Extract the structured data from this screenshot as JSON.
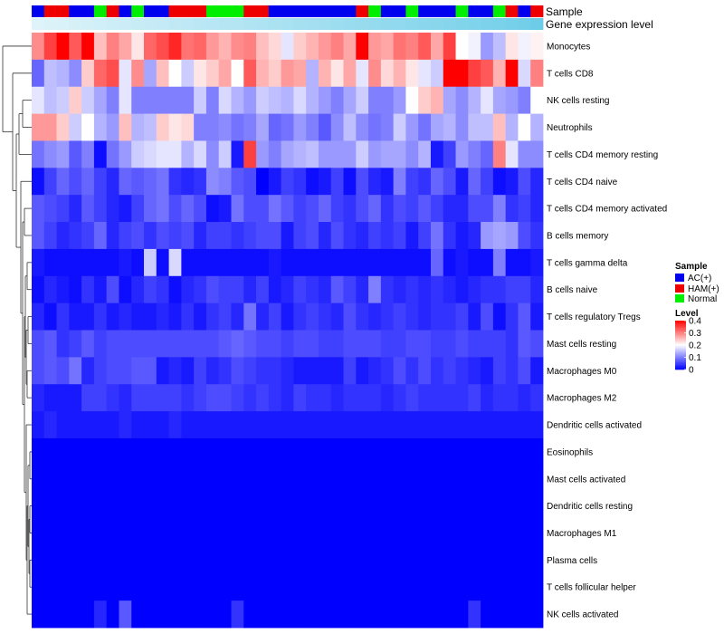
{
  "chart_data": {
    "type": "heatmap",
    "title": "",
    "annotation_labels": [
      "Sample",
      "Gene expression level"
    ],
    "colors": {
      "AC(+)": "#0000ee",
      "HAM(+)": "#ee0000",
      "Normal": "#00ee00",
      "gene_level_low": "#e6f6fb",
      "gene_level_high": "#5fc8e6",
      "level_low": "#0000ff",
      "level_mid": "#ffffff",
      "level_high": "#ff0000"
    },
    "sample_groups": [
      "AC(+)",
      "HAM(+)",
      "HAM(+)",
      "AC(+)",
      "AC(+)",
      "Normal",
      "HAM(+)",
      "AC(+)",
      "Normal",
      "AC(+)",
      "AC(+)",
      "HAM(+)",
      "HAM(+)",
      "HAM(+)",
      "Normal",
      "Normal",
      "Normal",
      "HAM(+)",
      "HAM(+)",
      "AC(+)",
      "AC(+)",
      "AC(+)",
      "AC(+)",
      "AC(+)",
      "AC(+)",
      "AC(+)",
      "HAM(+)",
      "Normal",
      "AC(+)",
      "AC(+)",
      "Normal",
      "AC(+)",
      "AC(+)",
      "AC(+)",
      "Normal",
      "AC(+)",
      "AC(+)",
      "Normal",
      "HAM(+)",
      "AC(+)",
      "HAM(+)"
    ],
    "gene_expression": [
      0.05,
      0.08,
      0.1,
      0.12,
      0.14,
      0.16,
      0.18,
      0.2,
      0.22,
      0.24,
      0.26,
      0.28,
      0.3,
      0.32,
      0.34,
      0.36,
      0.38,
      0.4,
      0.42,
      0.44,
      0.46,
      0.48,
      0.5,
      0.52,
      0.54,
      0.56,
      0.58,
      0.6,
      0.62,
      0.64,
      0.66,
      0.68,
      0.7,
      0.72,
      0.74,
      0.76,
      0.78,
      0.8,
      0.82,
      0.85,
      0.9
    ],
    "rows": [
      "Monocytes",
      "T cells CD8",
      "NK cells resting",
      "Neutrophils",
      "T cells CD4 memory resting",
      "T cells CD4 naive",
      "T cells CD4 memory activated",
      "B cells memory",
      "T cells gamma delta",
      "B cells naive",
      "T cells regulatory  Tregs",
      "Mast cells resting",
      "Macrophages M0",
      "Macrophages M2",
      "Dendritic cells activated",
      "Eosinophils",
      "Mast cells activated",
      "Dendritic cells resting",
      "Macrophages M1",
      "Plasma cells",
      "T cells follicular helper",
      "NK cells activated"
    ],
    "values": [
      [
        0.29,
        0.35,
        0.4,
        0.33,
        0.4,
        0.25,
        0.3,
        0.27,
        0.22,
        0.32,
        0.34,
        0.37,
        0.31,
        0.32,
        0.28,
        0.26,
        0.29,
        0.3,
        0.25,
        0.23,
        0.18,
        0.24,
        0.26,
        0.28,
        0.3,
        0.27,
        0.4,
        0.28,
        0.27,
        0.31,
        0.3,
        0.33,
        0.27,
        0.35,
        0.2,
        0.19,
        0.12,
        0.15,
        0.22,
        0.19,
        0.21
      ],
      [
        0.08,
        0.15,
        0.14,
        0.11,
        0.24,
        0.32,
        0.34,
        0.18,
        0.29,
        0.13,
        0.25,
        0.2,
        0.16,
        0.22,
        0.24,
        0.27,
        0.2,
        0.33,
        0.26,
        0.24,
        0.28,
        0.27,
        0.14,
        0.26,
        0.22,
        0.27,
        0.18,
        0.29,
        0.23,
        0.26,
        0.22,
        0.18,
        0.16,
        0.4,
        0.4,
        0.35,
        0.33,
        0.26,
        0.4,
        0.17,
        0.3
      ],
      [
        0.18,
        0.15,
        0.16,
        0.24,
        0.16,
        0.13,
        0.1,
        0.18,
        0.1,
        0.1,
        0.1,
        0.1,
        0.1,
        0.16,
        0.1,
        0.17,
        0.14,
        0.12,
        0.16,
        0.15,
        0.14,
        0.17,
        0.14,
        0.12,
        0.1,
        0.13,
        0.16,
        0.1,
        0.1,
        0.12,
        0.2,
        0.24,
        0.26,
        0.13,
        0.11,
        0.14,
        0.18,
        0.13,
        0.12,
        0.1,
        0.2
      ],
      [
        0.28,
        0.28,
        0.24,
        0.16,
        0.2,
        0.14,
        0.12,
        0.25,
        0.14,
        0.15,
        0.24,
        0.22,
        0.23,
        0.1,
        0.1,
        0.11,
        0.09,
        0.1,
        0.13,
        0.08,
        0.09,
        0.12,
        0.1,
        0.07,
        0.11,
        0.15,
        0.11,
        0.09,
        0.1,
        0.16,
        0.12,
        0.09,
        0.13,
        0.14,
        0.11,
        0.15,
        0.15,
        0.25,
        0.14,
        0.2,
        0.14
      ],
      [
        0.09,
        0.11,
        0.12,
        0.07,
        0.1,
        0.01,
        0.09,
        0.12,
        0.16,
        0.17,
        0.18,
        0.18,
        0.14,
        0.17,
        0.11,
        0.16,
        0.02,
        0.35,
        0.12,
        0.1,
        0.13,
        0.14,
        0.15,
        0.12,
        0.12,
        0.12,
        0.16,
        0.12,
        0.13,
        0.13,
        0.11,
        0.14,
        0.02,
        0.05,
        0.12,
        0.1,
        0.08,
        0.3,
        0.18,
        0.11,
        0.11
      ],
      [
        0.01,
        0.05,
        0.08,
        0.06,
        0.08,
        0.05,
        0.03,
        0.08,
        0.07,
        0.08,
        0.09,
        0.04,
        0.03,
        0.04,
        0.11,
        0.1,
        0.07,
        0.06,
        0.0,
        0.02,
        0.05,
        0.04,
        0.01,
        0.02,
        0.05,
        0.01,
        0.06,
        0.03,
        0.02,
        0.1,
        0.05,
        0.04,
        0.08,
        0.06,
        0.02,
        0.08,
        0.05,
        0.01,
        0.02,
        0.06,
        0.03
      ],
      [
        0.07,
        0.06,
        0.05,
        0.03,
        0.07,
        0.05,
        0.03,
        0.02,
        0.05,
        0.08,
        0.09,
        0.06,
        0.08,
        0.06,
        0.01,
        0.02,
        0.09,
        0.06,
        0.06,
        0.09,
        0.07,
        0.05,
        0.06,
        0.08,
        0.05,
        0.04,
        0.06,
        0.08,
        0.04,
        0.06,
        0.05,
        0.07,
        0.05,
        0.03,
        0.03,
        0.06,
        0.06,
        0.1,
        0.04,
        0.05,
        0.03
      ],
      [
        0.07,
        0.05,
        0.03,
        0.04,
        0.05,
        0.08,
        0.03,
        0.05,
        0.06,
        0.04,
        0.06,
        0.05,
        0.06,
        0.03,
        0.05,
        0.05,
        0.04,
        0.05,
        0.06,
        0.06,
        0.02,
        0.05,
        0.06,
        0.03,
        0.06,
        0.04,
        0.03,
        0.05,
        0.04,
        0.05,
        0.02,
        0.05,
        0.09,
        0.04,
        0.02,
        0.03,
        0.12,
        0.13,
        0.12,
        0.06,
        0.04
      ],
      [
        0.02,
        0.01,
        0.01,
        0.01,
        0.01,
        0.01,
        0.01,
        0.02,
        0.01,
        0.16,
        0.01,
        0.17,
        0.01,
        0.01,
        0.01,
        0.01,
        0.01,
        0.01,
        0.01,
        0.02,
        0.01,
        0.01,
        0.01,
        0.01,
        0.01,
        0.01,
        0.01,
        0.01,
        0.01,
        0.01,
        0.01,
        0.01,
        0.08,
        0.01,
        0.02,
        0.01,
        0.01,
        0.1,
        0.01,
        0.01,
        0.02
      ],
      [
        0.01,
        0.03,
        0.02,
        0.01,
        0.04,
        0.02,
        0.06,
        0.01,
        0.03,
        0.05,
        0.04,
        0.01,
        0.03,
        0.04,
        0.06,
        0.05,
        0.05,
        0.03,
        0.05,
        0.02,
        0.03,
        0.05,
        0.04,
        0.03,
        0.07,
        0.05,
        0.03,
        0.1,
        0.04,
        0.03,
        0.04,
        0.03,
        0.04,
        0.03,
        0.02,
        0.03,
        0.04,
        0.04,
        0.05,
        0.05,
        0.03
      ],
      [
        0.03,
        0.01,
        0.04,
        0.02,
        0.02,
        0.04,
        0.02,
        0.03,
        0.02,
        0.02,
        0.03,
        0.02,
        0.04,
        0.02,
        0.04,
        0.05,
        0.03,
        0.09,
        0.03,
        0.05,
        0.02,
        0.04,
        0.05,
        0.04,
        0.03,
        0.06,
        0.04,
        0.03,
        0.04,
        0.05,
        0.04,
        0.03,
        0.04,
        0.04,
        0.05,
        0.02,
        0.06,
        0.01,
        0.04,
        0.07,
        0.02
      ],
      [
        0.06,
        0.07,
        0.04,
        0.05,
        0.07,
        0.05,
        0.06,
        0.06,
        0.06,
        0.06,
        0.06,
        0.06,
        0.06,
        0.06,
        0.06,
        0.07,
        0.08,
        0.07,
        0.06,
        0.06,
        0.05,
        0.06,
        0.06,
        0.05,
        0.05,
        0.06,
        0.06,
        0.06,
        0.05,
        0.05,
        0.06,
        0.06,
        0.05,
        0.05,
        0.06,
        0.05,
        0.05,
        0.05,
        0.04,
        0.07,
        0.06
      ],
      [
        0.06,
        0.07,
        0.06,
        0.09,
        0.03,
        0.05,
        0.06,
        0.06,
        0.07,
        0.07,
        0.02,
        0.03,
        0.02,
        0.05,
        0.03,
        0.04,
        0.06,
        0.05,
        0.04,
        0.04,
        0.03,
        0.02,
        0.02,
        0.02,
        0.02,
        0.05,
        0.02,
        0.03,
        0.04,
        0.06,
        0.04,
        0.06,
        0.04,
        0.05,
        0.04,
        0.03,
        0.02,
        0.05,
        0.04,
        0.06,
        0.02
      ],
      [
        0.03,
        0.02,
        0.02,
        0.02,
        0.05,
        0.05,
        0.04,
        0.03,
        0.05,
        0.05,
        0.05,
        0.05,
        0.04,
        0.05,
        0.06,
        0.06,
        0.05,
        0.04,
        0.05,
        0.04,
        0.03,
        0.05,
        0.04,
        0.04,
        0.03,
        0.04,
        0.04,
        0.04,
        0.03,
        0.04,
        0.05,
        0.04,
        0.04,
        0.04,
        0.04,
        0.05,
        0.03,
        0.04,
        0.04,
        0.03,
        0.04
      ],
      [
        0.02,
        0.03,
        0.02,
        0.02,
        0.02,
        0.02,
        0.02,
        0.03,
        0.02,
        0.02,
        0.02,
        0.03,
        0.02,
        0.02,
        0.02,
        0.02,
        0.02,
        0.02,
        0.02,
        0.02,
        0.02,
        0.02,
        0.02,
        0.02,
        0.02,
        0.02,
        0.02,
        0.02,
        0.02,
        0.02,
        0.02,
        0.02,
        0.02,
        0.02,
        0.02,
        0.02,
        0.02,
        0.02,
        0.02,
        0.02,
        0.02
      ],
      [
        0.0,
        0.0,
        0.0,
        0.0,
        0.0,
        0.0,
        0.0,
        0.0,
        0.0,
        0.0,
        0.0,
        0.0,
        0.0,
        0.0,
        0.0,
        0.0,
        0.0,
        0.0,
        0.0,
        0.0,
        0.0,
        0.0,
        0.0,
        0.0,
        0.0,
        0.0,
        0.0,
        0.0,
        0.0,
        0.0,
        0.0,
        0.0,
        0.0,
        0.0,
        0.0,
        0.0,
        0.0,
        0.0,
        0.0,
        0.0,
        0.0
      ],
      [
        0.0,
        0.0,
        0.0,
        0.0,
        0.0,
        0.0,
        0.0,
        0.0,
        0.0,
        0.0,
        0.0,
        0.0,
        0.0,
        0.0,
        0.0,
        0.0,
        0.0,
        0.0,
        0.0,
        0.0,
        0.0,
        0.0,
        0.0,
        0.0,
        0.0,
        0.0,
        0.0,
        0.0,
        0.0,
        0.0,
        0.0,
        0.0,
        0.0,
        0.0,
        0.0,
        0.0,
        0.0,
        0.0,
        0.0,
        0.0,
        0.0
      ],
      [
        0.0,
        0.0,
        0.0,
        0.0,
        0.0,
        0.0,
        0.0,
        0.0,
        0.0,
        0.0,
        0.0,
        0.0,
        0.0,
        0.0,
        0.0,
        0.0,
        0.0,
        0.0,
        0.0,
        0.0,
        0.0,
        0.0,
        0.0,
        0.0,
        0.0,
        0.0,
        0.0,
        0.0,
        0.0,
        0.0,
        0.0,
        0.0,
        0.0,
        0.0,
        0.0,
        0.0,
        0.0,
        0.0,
        0.0,
        0.0,
        0.0
      ],
      [
        0.0,
        0.0,
        0.0,
        0.0,
        0.0,
        0.0,
        0.0,
        0.0,
        0.0,
        0.0,
        0.0,
        0.0,
        0.0,
        0.0,
        0.0,
        0.0,
        0.0,
        0.0,
        0.0,
        0.0,
        0.0,
        0.0,
        0.0,
        0.0,
        0.0,
        0.0,
        0.0,
        0.0,
        0.0,
        0.0,
        0.0,
        0.0,
        0.0,
        0.0,
        0.0,
        0.0,
        0.0,
        0.0,
        0.0,
        0.0,
        0.0
      ],
      [
        0.0,
        0.0,
        0.0,
        0.0,
        0.0,
        0.0,
        0.0,
        0.0,
        0.0,
        0.0,
        0.0,
        0.0,
        0.0,
        0.0,
        0.0,
        0.0,
        0.0,
        0.0,
        0.0,
        0.0,
        0.0,
        0.0,
        0.0,
        0.0,
        0.0,
        0.0,
        0.0,
        0.0,
        0.0,
        0.0,
        0.0,
        0.0,
        0.0,
        0.0,
        0.0,
        0.0,
        0.0,
        0.0,
        0.0,
        0.0,
        0.0
      ],
      [
        0.0,
        0.0,
        0.0,
        0.0,
        0.0,
        0.0,
        0.0,
        0.0,
        0.0,
        0.0,
        0.0,
        0.0,
        0.0,
        0.0,
        0.0,
        0.0,
        0.0,
        0.0,
        0.0,
        0.0,
        0.0,
        0.0,
        0.0,
        0.0,
        0.0,
        0.0,
        0.0,
        0.0,
        0.0,
        0.0,
        0.0,
        0.0,
        0.0,
        0.0,
        0.0,
        0.0,
        0.0,
        0.0,
        0.0,
        0.0,
        0.0
      ],
      [
        0.0,
        0.0,
        0.0,
        0.0,
        0.0,
        0.03,
        0.0,
        0.07,
        0.0,
        0.0,
        0.0,
        0.0,
        0.0,
        0.0,
        0.0,
        0.0,
        0.04,
        0.0,
        0.0,
        0.0,
        0.0,
        0.0,
        0.0,
        0.0,
        0.0,
        0.0,
        0.0,
        0.0,
        0.0,
        0.0,
        0.0,
        0.0,
        0.0,
        0.0,
        0.0,
        0.04,
        0.0,
        0.0,
        0.0,
        0.0,
        0.0
      ]
    ],
    "legend": {
      "sample_title": "Sample",
      "sample_entries": [
        "AC(+)",
        "HAM(+)",
        "Normal"
      ],
      "level_title": "Level",
      "level_ticks": [
        "0.4",
        "0.3",
        "0.2",
        "0.1",
        "0"
      ],
      "level_tick_values": [
        0.4,
        0.3,
        0.2,
        0.1,
        0
      ],
      "level_range": [
        0,
        0.4
      ],
      "placement": "right"
    }
  }
}
